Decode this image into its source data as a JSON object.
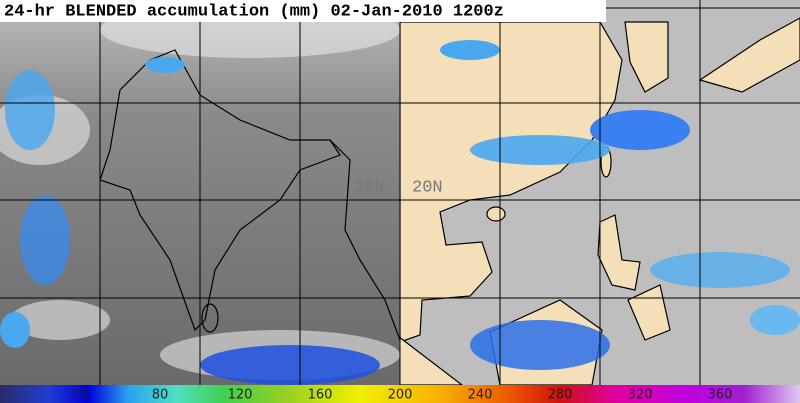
{
  "title": "24-hr BLENDED accumulation (mm) 02-Jan-2010 1200z",
  "grid_labels": [
    "20N",
    "20N"
  ],
  "colorbar": {
    "labels": [
      40,
      80,
      120,
      160,
      200,
      240,
      280,
      320,
      360
    ]
  }
}
